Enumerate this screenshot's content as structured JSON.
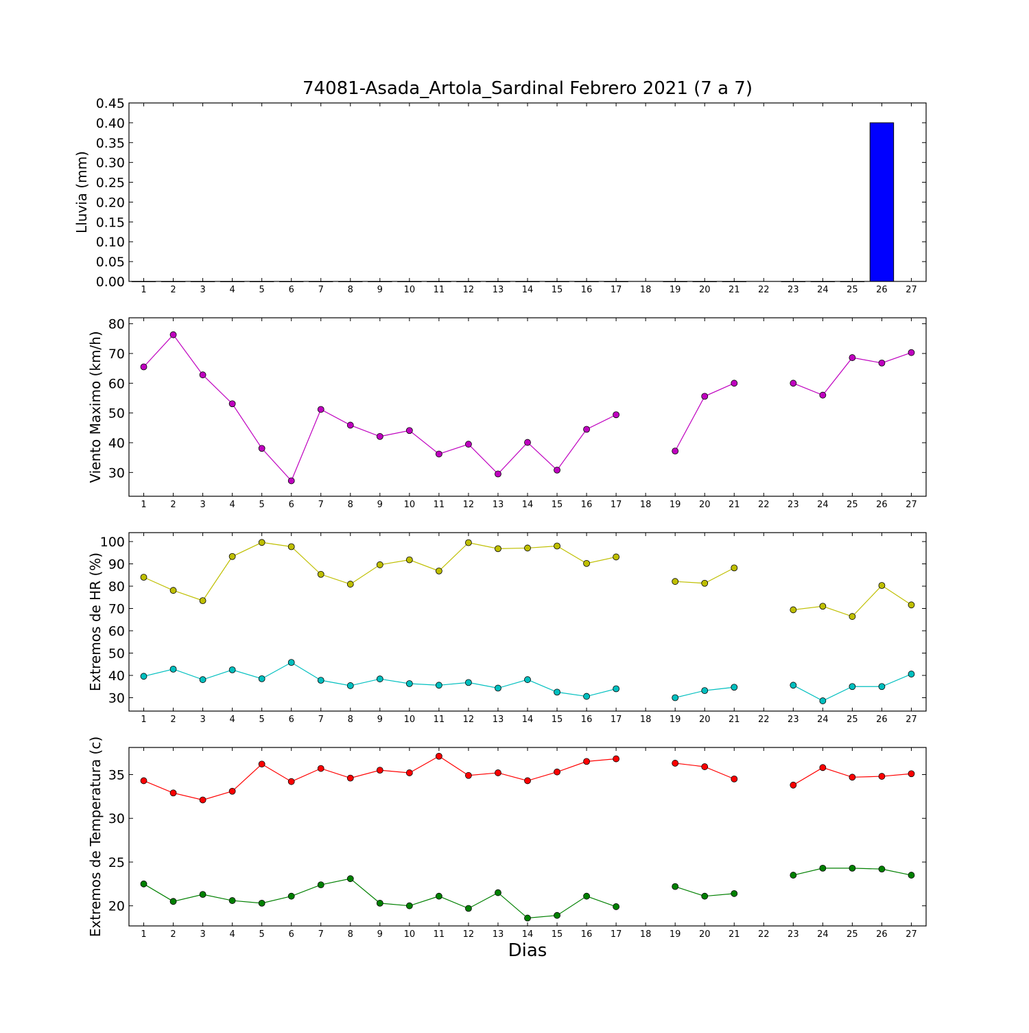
{
  "title": "74081-Asada_Artola_Sardinal Febrero 2021  (7 a 7)",
  "xlabel": "Dias",
  "chart_data": [
    {
      "type": "bar",
      "ylabel": "Lluvia (mm)",
      "ylim": [
        0,
        0.45
      ],
      "yticks": [
        "0.00",
        "0.05",
        "0.10",
        "0.15",
        "0.20",
        "0.25",
        "0.30",
        "0.35",
        "0.40",
        "0.45"
      ],
      "ytick_values": [
        0,
        0.05,
        0.1,
        0.15,
        0.2,
        0.25,
        0.3,
        0.35,
        0.4,
        0.45
      ],
      "x": [
        1,
        2,
        3,
        4,
        5,
        6,
        7,
        8,
        9,
        10,
        11,
        12,
        13,
        14,
        15,
        16,
        17,
        18,
        19,
        20,
        21,
        22,
        23,
        24,
        25,
        26,
        27
      ],
      "values": [
        0,
        0,
        0,
        0,
        0,
        0,
        0,
        0,
        0,
        0,
        0,
        0,
        0,
        0,
        0,
        0,
        0,
        null,
        0,
        0,
        0,
        null,
        0,
        0,
        0,
        0.4,
        null
      ],
      "color": "#0000ff"
    },
    {
      "type": "line",
      "ylabel": "Viento Maximo (km/h)",
      "ylim": [
        22,
        82
      ],
      "yticks": [
        "30",
        "40",
        "50",
        "60",
        "70",
        "80"
      ],
      "ytick_values": [
        30,
        40,
        50,
        60,
        70,
        80
      ],
      "x": [
        1,
        2,
        3,
        4,
        5,
        6,
        7,
        8,
        9,
        10,
        11,
        12,
        13,
        14,
        15,
        16,
        17,
        18,
        19,
        20,
        21,
        22,
        23,
        24,
        25,
        26,
        27
      ],
      "series": [
        {
          "values": [
            65.5,
            76.3,
            62.8,
            53.1,
            38.1,
            27.2,
            51.2,
            45.9,
            42.1,
            44.1,
            36.2,
            39.5,
            29.5,
            40.1,
            30.8,
            44.5,
            49.4,
            null,
            37.2,
            55.6,
            60.0,
            null,
            60.0,
            56.0,
            68.6,
            66.8,
            70.3
          ],
          "color": "#bf00bf"
        }
      ]
    },
    {
      "type": "line",
      "ylabel": "Extremos de HR (%)",
      "ylim": [
        24,
        104
      ],
      "yticks": [
        "30",
        "40",
        "50",
        "60",
        "70",
        "80",
        "90",
        "100"
      ],
      "ytick_values": [
        30,
        40,
        50,
        60,
        70,
        80,
        90,
        100
      ],
      "x": [
        1,
        2,
        3,
        4,
        5,
        6,
        7,
        8,
        9,
        10,
        11,
        12,
        13,
        14,
        15,
        16,
        17,
        18,
        19,
        20,
        21,
        22,
        23,
        24,
        25,
        26,
        27
      ],
      "series": [
        {
          "values": [
            84.0,
            78.1,
            73.5,
            93.3,
            99.6,
            97.7,
            85.3,
            80.9,
            89.6,
            91.8,
            86.8,
            99.5,
            96.8,
            97.1,
            98.0,
            90.2,
            93.1,
            null,
            82.1,
            81.3,
            88.2,
            null,
            69.4,
            71.0,
            66.4,
            80.3,
            71.6
          ],
          "color": "#bfbf00"
        },
        {
          "values": [
            39.6,
            42.8,
            38.1,
            42.5,
            38.5,
            45.8,
            37.8,
            35.4,
            38.4,
            36.3,
            35.6,
            36.8,
            34.3,
            38.1,
            32.5,
            30.6,
            34.0,
            null,
            30.0,
            33.2,
            34.7,
            null,
            35.6,
            28.6,
            35.0,
            35.0,
            40.6
          ],
          "color": "#00bfbf"
        }
      ]
    },
    {
      "type": "line",
      "ylabel": "Extremos de Temperatura (c)",
      "ylim": [
        17.7,
        38.1
      ],
      "yticks": [
        "20",
        "25",
        "30",
        "35"
      ],
      "ytick_values": [
        20,
        25,
        30,
        35
      ],
      "x": [
        1,
        2,
        3,
        4,
        5,
        6,
        7,
        8,
        9,
        10,
        11,
        12,
        13,
        14,
        15,
        16,
        17,
        18,
        19,
        20,
        21,
        22,
        23,
        24,
        25,
        26,
        27
      ],
      "series": [
        {
          "values": [
            34.3,
            32.9,
            32.1,
            33.1,
            36.2,
            34.2,
            35.7,
            34.6,
            35.5,
            35.2,
            37.1,
            34.9,
            35.2,
            34.3,
            35.3,
            36.5,
            36.8,
            null,
            36.3,
            35.9,
            34.5,
            null,
            33.8,
            35.8,
            34.7,
            34.8,
            35.1
          ],
          "color": "#ff0000"
        },
        {
          "values": [
            22.5,
            20.5,
            21.3,
            20.6,
            20.3,
            21.1,
            22.4,
            23.1,
            20.3,
            20.0,
            21.1,
            19.7,
            21.5,
            18.6,
            18.9,
            21.1,
            19.9,
            null,
            22.2,
            21.1,
            21.4,
            null,
            23.5,
            24.3,
            24.3,
            24.2,
            23.5
          ],
          "color": "#008000"
        }
      ]
    }
  ]
}
